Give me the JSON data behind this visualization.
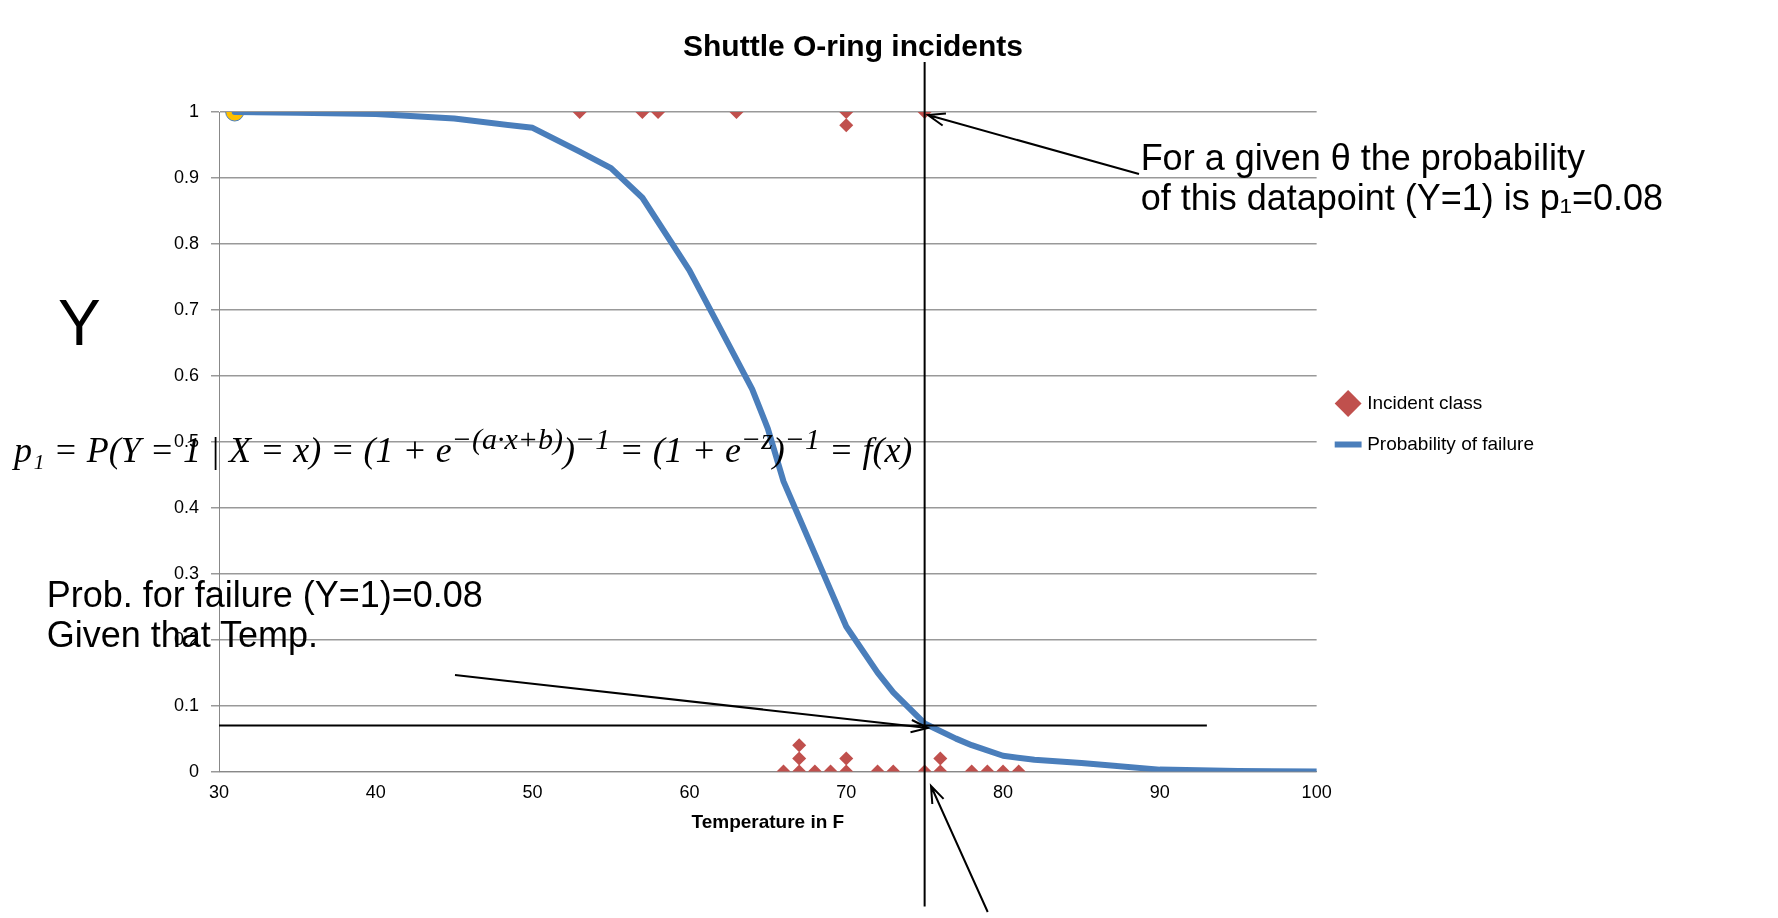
{
  "chart_data": {
    "type": "scatter",
    "title": "Shuttle O-ring incidents",
    "xlabel": "Temperature in F",
    "ylabel": "Y",
    "xlim": [
      30,
      100
    ],
    "xticks": [
      30,
      40,
      50,
      60,
      70,
      80,
      90,
      100
    ],
    "ylim": [
      0,
      1
    ],
    "yticks": [
      0,
      0.1,
      0.2,
      0.3,
      0.4,
      0.5,
      0.6,
      0.7,
      0.8,
      0.9,
      1
    ],
    "grid": "y",
    "legend": "right",
    "series": [
      {
        "name": "Incident class",
        "marker": "diamond",
        "color": "#c0504d",
        "x": [
          53,
          57,
          58,
          63,
          70,
          70,
          75,
          66,
          67,
          67,
          67,
          68,
          69,
          70,
          70,
          72,
          73,
          75,
          76,
          76,
          78,
          79,
          80,
          81
        ],
        "values": [
          1,
          1,
          1,
          1,
          1,
          0.98,
          1,
          0,
          0,
          0.02,
          0.04,
          0,
          0,
          0,
          0.02,
          0,
          0,
          0,
          0,
          0.02,
          0,
          0,
          0,
          0
        ]
      },
      {
        "name": "Probability of failure",
        "type": "line",
        "marker": "none",
        "color": "#4a7ebb",
        "x": [
          31,
          35,
          40,
          45,
          50,
          53,
          55,
          57,
          60,
          62,
          64,
          65,
          66,
          68,
          70,
          72,
          73,
          75,
          77,
          78,
          80,
          82,
          85,
          90,
          95,
          100
        ],
        "values": [
          1,
          0.999,
          0.997,
          0.99,
          0.976,
          0.94,
          0.915,
          0.87,
          0.76,
          0.67,
          0.58,
          0.52,
          0.44,
          0.33,
          0.22,
          0.15,
          0.12,
          0.073,
          0.05,
          0.04,
          0.024,
          0.018,
          0.013,
          0.003,
          0.001,
          0
        ]
      },
      {
        "marker": "circle",
        "color": "#ffc000",
        "x": [
          31
        ],
        "values": [
          1
        ]
      }
    ],
    "ref_lines": [
      {
        "axis": "x",
        "value": 75,
        "color": "#000000"
      },
      {
        "axis": "y",
        "value": 0.07,
        "color": "#000000"
      }
    ],
    "annotations": [
      "p₁ = P(Y = 1 | X = x) = (1 + e$^{−(a·x+b)}$)$^{−1}$ = (1 + e$^{−z}$)$^{−1}$ = f(x)",
      {
        "text": "For a given θ the probability\nof this datapoint (Y=1) is p₁=0.08",
        "x": 75,
        "y": 1
      },
      {
        "text": "Prob. for failure (Y=1)=0.08\nGiven that Temp.",
        "x": 75,
        "y": 0.07
      }
    ]
  }
}
